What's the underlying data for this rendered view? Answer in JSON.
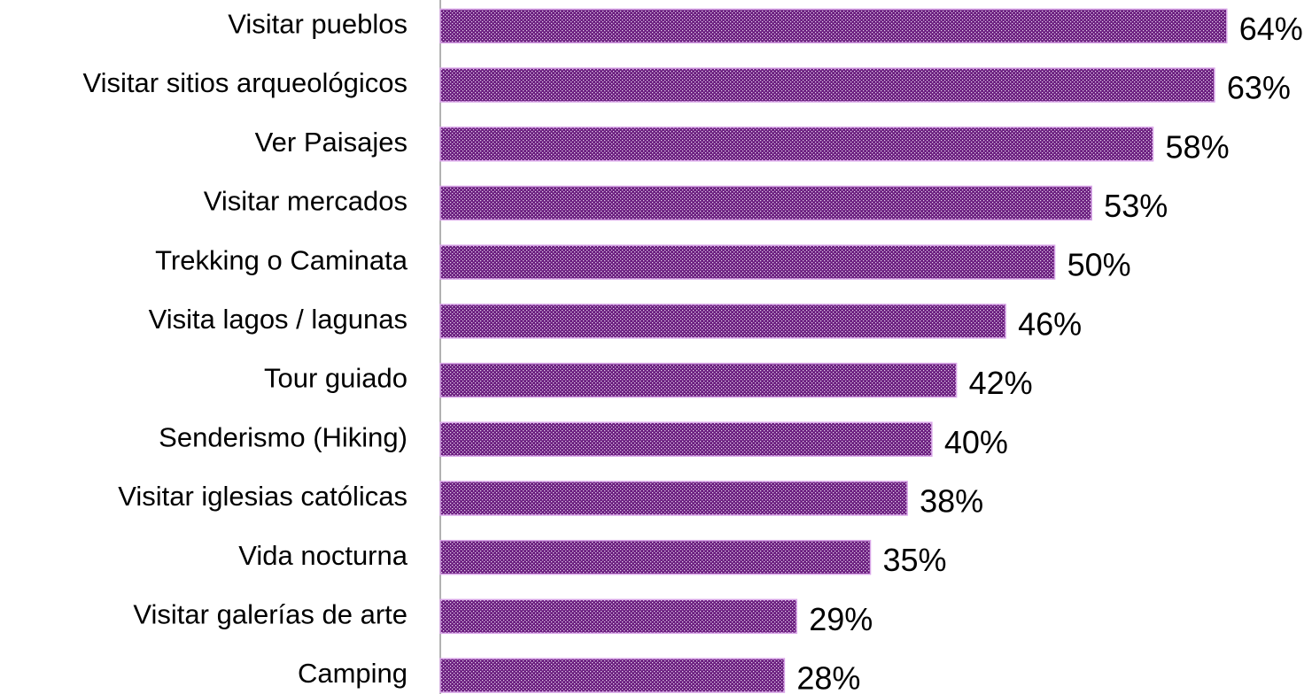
{
  "chart_data": {
    "type": "hbar",
    "categories": [
      "Visitar pueblos",
      "Visitar sitios arqueológicos",
      "Ver Paisajes",
      "Visitar mercados",
      "Trekking o Caminata",
      "Visita lagos / lagunas",
      "Tour guiado",
      "Senderismo (Hiking)",
      "Visitar iglesias católicas",
      "Vida nocturna",
      "Visitar galerías de arte",
      "Camping"
    ],
    "values": [
      64,
      63,
      58,
      53,
      50,
      46,
      42,
      40,
      38,
      35,
      29,
      28
    ],
    "value_labels": [
      "64%",
      "63%",
      "58%",
      "53%",
      "50%",
      "46%",
      "42%",
      "40%",
      "38%",
      "35%",
      "29%",
      "28%"
    ],
    "color": "#6b1f7f",
    "xlim": [
      0,
      70
    ]
  }
}
